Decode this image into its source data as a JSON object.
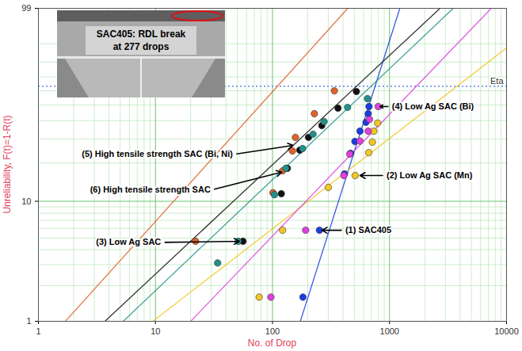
{
  "chart_data": {
    "type": "scatter",
    "x_label": "No. of Drop",
    "y_label": "Unreliability, F(t)=1-R(t)",
    "xlim": [
      1,
      10000
    ],
    "ylim": [
      1,
      99
    ],
    "xticks": [
      1,
      10,
      100,
      1000,
      10000
    ],
    "yticks": [
      1,
      10,
      99
    ],
    "log": "x",
    "grid": true,
    "reference_line": {
      "value": 63.2,
      "label": "Eta",
      "color": "#4466ee"
    },
    "inset": {
      "lines": [
        "SAC405: RDL break",
        "at 277 drops"
      ]
    },
    "series": [
      {
        "name": "(1) SAC405",
        "color": "#1a3de0",
        "marker": "circle",
        "x": [
          182,
          252,
          412,
          465,
          506,
          559,
          630,
          657,
          668
        ],
        "values": [
          1.6,
          5.8,
          16.5,
          23.6,
          28.8,
          34.0,
          39.0,
          44.3,
          49.0
        ],
        "fit": {
          "x": [
            173,
            1225
          ],
          "values": [
            1,
            99
          ]
        },
        "label_at": [
          400,
          5.8
        ],
        "arrow_to": [
          265,
          5.8
        ]
      },
      {
        "name": "(2) Low Ag SAC (Mn)",
        "color": "#f2c626",
        "marker": "circle",
        "x": [
          77,
          122,
          300,
          509,
          664,
          714,
          735,
          790
        ],
        "values": [
          1.6,
          5.8,
          12.9,
          16.0,
          23.9,
          28.5,
          34.0,
          38.5
        ],
        "fit": {
          "x": [
            9.5,
            10000
          ],
          "values": [
            1,
            88
          ]
        },
        "label_at": [
          900,
          16.0
        ],
        "arrow_to": [
          560,
          16.0
        ]
      },
      {
        "name": "(3) Low Ag SAC",
        "color": "#111111",
        "marker": "circle",
        "x": [
          56,
          119,
          134,
          171,
          203,
          264,
          363,
          521
        ],
        "values": [
          4.7,
          11.5,
          18.2,
          24.9,
          30.8,
          37.1,
          47.9,
          59.5
        ],
        "fit": {
          "x": [
            3.7,
            2700
          ],
          "values": [
            1,
            99
          ]
        },
        "label_at": [
          11.7,
          4.6
        ],
        "arrow_to": [
          52,
          4.7
        ]
      },
      {
        "name": "(4) Low Ag SAC (Bi)",
        "color": "#e040e0",
        "marker": "circle",
        "x": [
          97,
          192,
          407,
          457,
          559,
          657,
          674,
          800
        ],
        "values": [
          1.6,
          5.8,
          16.0,
          23.3,
          29.0,
          34.0,
          40.8,
          49.0
        ],
        "fit": {
          "x": [
            20,
            7400
          ],
          "values": [
            1,
            99
          ]
        },
        "label_at": [
          1000,
          49.0
        ],
        "arrow_to": [
          830,
          49.0
        ]
      },
      {
        "name": "(5) High tensile strength SAC (Bi, Ni)",
        "color": "#e0622a",
        "marker": "circle",
        "x": [
          22,
          101,
          122,
          148,
          157,
          228,
          338
        ],
        "values": [
          4.7,
          11.7,
          17.4,
          24.6,
          30.8,
          44.3,
          60.0
        ],
        "fit": {
          "x": [
            1.7,
            440
          ],
          "values": [
            1,
            99
          ]
        },
        "label_at": [
          48,
          23.3
        ],
        "arrow_to": [
          150,
          27.0
        ]
      },
      {
        "name": "(6) High tensile strength SAC",
        "color": "#23908a",
        "marker": "circle",
        "x": [
          34,
          51,
          104,
          130,
          181,
          222,
          276,
          438,
          648
        ],
        "values": [
          3.1,
          4.7,
          11.3,
          18.2,
          25.6,
          32.4,
          39.4,
          48.4,
          54.4
        ],
        "fit": {
          "x": [
            5.3,
            3500
          ],
          "values": [
            1,
            99
          ]
        },
        "label_at": [
          31,
          12.4
        ],
        "arrow_to": [
          120,
          17.0
        ]
      }
    ]
  }
}
